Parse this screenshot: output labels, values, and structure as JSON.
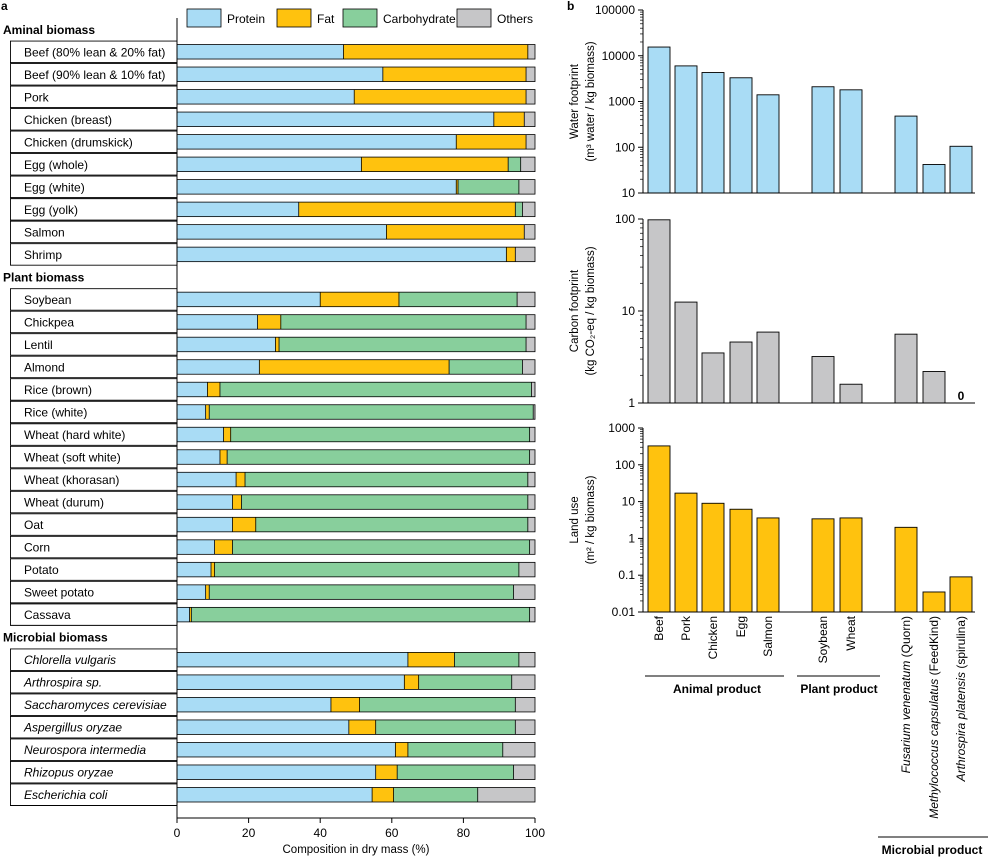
{
  "panel_labels": {
    "a": "a",
    "b": "b"
  },
  "colors": {
    "protein": "#a9dcf5",
    "fat": "#ffc20e",
    "carbohydrate": "#88cf9c",
    "others": "#c6c6c8",
    "water": "#a9dcf5",
    "carbon": "#c6c6c8",
    "land": "#ffc20e"
  },
  "legend": [
    "Protein",
    "Fat",
    "Carbohydrate",
    "Others"
  ],
  "chart_data": [
    {
      "type": "bar",
      "orientation": "horizontal",
      "stacked": true,
      "xlabel": "Composition in dry mass (%)",
      "xlim": [
        0,
        100
      ],
      "xticks": [
        "0",
        "20",
        "40",
        "60",
        "80",
        "100"
      ],
      "legend_position": "top",
      "series_names": [
        "Protein",
        "Fat",
        "Carbohydrate",
        "Others"
      ],
      "rows": [
        {
          "type": "header",
          "label": "Aminal biomass"
        },
        {
          "label": "Beef (80% lean & 20% fat)",
          "values": [
            46.5,
            51.5,
            0,
            2.0
          ]
        },
        {
          "label": "Beef (90% lean & 10% fat)",
          "values": [
            57.5,
            40.0,
            0,
            2.5
          ]
        },
        {
          "label": "Pork",
          "values": [
            49.5,
            48.0,
            0,
            2.5
          ]
        },
        {
          "label": "Chicken (breast)",
          "values": [
            88.5,
            8.5,
            0,
            3.0
          ]
        },
        {
          "label": "Chicken (drumskick)",
          "values": [
            78.0,
            19.5,
            0,
            2.5
          ]
        },
        {
          "label": "Egg (whole)",
          "values": [
            51.5,
            41.0,
            3.5,
            4.0
          ]
        },
        {
          "label": "Egg (white)",
          "values": [
            78.0,
            0.5,
            17.0,
            4.5
          ]
        },
        {
          "label": "Egg (yolk)",
          "values": [
            34.0,
            60.5,
            2.0,
            3.5
          ]
        },
        {
          "label": "Salmon",
          "values": [
            58.5,
            38.5,
            0,
            3.0
          ]
        },
        {
          "label": "Shrimp",
          "values": [
            92.0,
            2.5,
            0,
            5.5
          ]
        },
        {
          "type": "header",
          "label": "Plant biomass"
        },
        {
          "label": "Soybean",
          "values": [
            40.0,
            22.0,
            33.0,
            5.0
          ]
        },
        {
          "label": "Chickpea",
          "values": [
            22.5,
            6.5,
            68.5,
            2.5
          ]
        },
        {
          "label": "Lentil",
          "values": [
            27.5,
            1.0,
            69.0,
            2.5
          ]
        },
        {
          "label": "Almond",
          "values": [
            23.0,
            53.0,
            20.5,
            3.5
          ]
        },
        {
          "label": "Rice (brown)",
          "values": [
            8.5,
            3.5,
            87.0,
            1.0
          ]
        },
        {
          "label": "Rice (white)",
          "values": [
            8.0,
            1.0,
            90.5,
            0.5
          ]
        },
        {
          "label": "Wheat (hard white)",
          "values": [
            13.0,
            2.0,
            83.5,
            1.5
          ]
        },
        {
          "label": "Wheat (soft white)",
          "values": [
            12.0,
            2.0,
            84.5,
            1.5
          ]
        },
        {
          "label": "Wheat (khorasan)",
          "values": [
            16.5,
            2.5,
            79.0,
            2.0
          ]
        },
        {
          "label": "Wheat (durum)",
          "values": [
            15.5,
            2.5,
            80.0,
            2.0
          ]
        },
        {
          "label": "Oat",
          "values": [
            15.5,
            6.5,
            76.0,
            2.0
          ]
        },
        {
          "label": "Corn",
          "values": [
            10.5,
            5.0,
            83.0,
            1.5
          ]
        },
        {
          "label": "Potato",
          "values": [
            9.5,
            1.0,
            85.0,
            4.5
          ]
        },
        {
          "label": "Sweet potato",
          "values": [
            8.0,
            1.0,
            85.0,
            6.0
          ]
        },
        {
          "label": "Cassava",
          "values": [
            3.5,
            0.5,
            94.5,
            1.5
          ]
        },
        {
          "type": "header",
          "label": "Microbial biomass"
        },
        {
          "label": "Chlorella vulgaris",
          "italic": true,
          "values": [
            64.5,
            13.0,
            18.0,
            4.5
          ]
        },
        {
          "label": "Arthrospira sp.",
          "italic": true,
          "values": [
            63.5,
            4.0,
            26.0,
            6.5
          ]
        },
        {
          "label": "Saccharomyces cerevisiae",
          "italic": true,
          "values": [
            43.0,
            8.0,
            43.5,
            5.5
          ]
        },
        {
          "label": "Aspergillus oryzae",
          "italic": true,
          "values": [
            48.0,
            7.5,
            39.0,
            5.5
          ]
        },
        {
          "label": "Neurospora intermedia",
          "italic": true,
          "values": [
            61.0,
            3.5,
            26.5,
            9.0
          ]
        },
        {
          "label": "Rhizopus oryzae",
          "italic": true,
          "values": [
            55.5,
            6.0,
            32.5,
            6.0
          ]
        },
        {
          "label": "Escherichia coli",
          "italic": true,
          "values": [
            54.5,
            6.0,
            23.5,
            16.0
          ]
        }
      ]
    },
    {
      "type": "bar",
      "scale": "log",
      "ylabel_line1": "Water footprint",
      "ylabel_line2": "(m³ water / kg biomass)",
      "ylim": [
        10,
        100000
      ],
      "yticks": [
        "10",
        "100",
        "1000",
        "10000",
        "100000"
      ],
      "categories": [
        "Beef",
        "Pork",
        "Chicken",
        "Egg",
        "Salmon",
        "Soybean",
        "Wheat",
        "Fusarium venenatum (Quorn)",
        "Methylococcus capsulatus (FeedKind)",
        "Arthrospira platensis (spirulina)"
      ],
      "values": [
        15500,
        6000,
        4300,
        3300,
        1400,
        2100,
        1800,
        480,
        42,
        105
      ]
    },
    {
      "type": "bar",
      "scale": "log",
      "ylabel_line1": "Carbon footprint",
      "ylabel_line2": "(kg CO₂-eq / kg biomass)",
      "ylim": [
        1,
        100
      ],
      "yticks": [
        "1",
        "10",
        "100"
      ],
      "categories": [
        "Beef",
        "Pork",
        "Chicken",
        "Egg",
        "Salmon",
        "Soybean",
        "Wheat",
        "Fusarium venenatum (Quorn)",
        "Methylococcus capsulatus (FeedKind)",
        "Arthrospira platensis (spirulina)"
      ],
      "values": [
        98,
        12.5,
        3.5,
        4.6,
        5.9,
        3.2,
        1.6,
        5.6,
        2.2,
        0
      ],
      "annotations": [
        {
          "category": "Arthrospira platensis (spirulina)",
          "text": "0"
        }
      ]
    },
    {
      "type": "bar",
      "scale": "log",
      "ylabel_line1": "Land use",
      "ylabel_line2": "(m² / kg biomass)",
      "ylim": [
        0.01,
        1000
      ],
      "yticks": [
        "0.01",
        "0.1",
        "1",
        "10",
        "100",
        "1000"
      ],
      "categories": [
        "Beef",
        "Pork",
        "Chicken",
        "Egg",
        "Salmon",
        "Soybean",
        "Wheat",
        "Fusarium venenatum (Quorn)",
        "Methylococcus capsulatus (FeedKind)",
        "Arthrospira platensis (spirulina)"
      ],
      "values": [
        326,
        17,
        9,
        6.2,
        3.6,
        3.4,
        3.6,
        2.0,
        0.035,
        0.09
      ]
    }
  ],
  "x_labels": [
    {
      "text": "Beef"
    },
    {
      "text": "Pork"
    },
    {
      "text": "Chicken"
    },
    {
      "text": "Egg"
    },
    {
      "text": "Salmon"
    },
    {
      "text": "Soybean"
    },
    {
      "text": "Wheat"
    },
    {
      "italic": "Fusarium venenatum",
      "rest": " (Quorn)"
    },
    {
      "italic": "Methylococcus capsulatus",
      "rest": " (FeedKind)"
    },
    {
      "italic": "Arthrospira platensis",
      "rest": " (spirulina)"
    }
  ],
  "groups": [
    {
      "label": "Animal product"
    },
    {
      "label": "Plant product"
    },
    {
      "label": "Microbial product"
    }
  ]
}
